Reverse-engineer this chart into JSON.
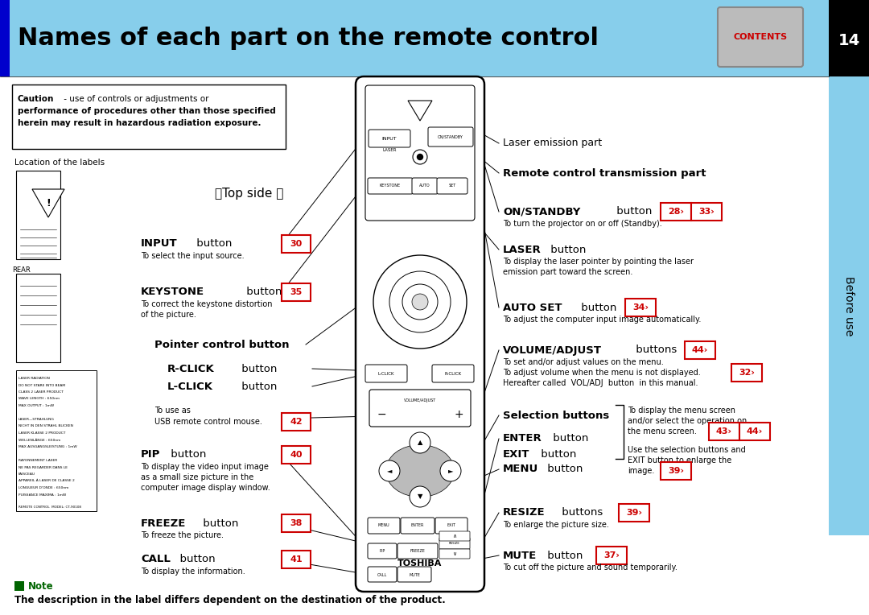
{
  "title": "Names of each part on the remote control",
  "title_bg": "#87CEEB",
  "title_color": "#000000",
  "title_fontsize": 22,
  "page_num": "14",
  "page_bg": "#000000",
  "sidebar_color": "#87CEEB",
  "contents_label": "CONTENTS",
  "contents_bg": "#AAAAAA",
  "contents_fg": "#CC0000",
  "blue_bar_color": "#0000CC",
  "body_bg": "#FFFFFF",
  "note_text": "Note",
  "note_color": "#006400",
  "note_body": "The description in the label differs dependent on the destination of the product.",
  "before_use_text": "Before use",
  "location_label": "Location of the labels",
  "top_side_label": "【Top side 】",
  "red": "#CC0000",
  "black": "#000000"
}
